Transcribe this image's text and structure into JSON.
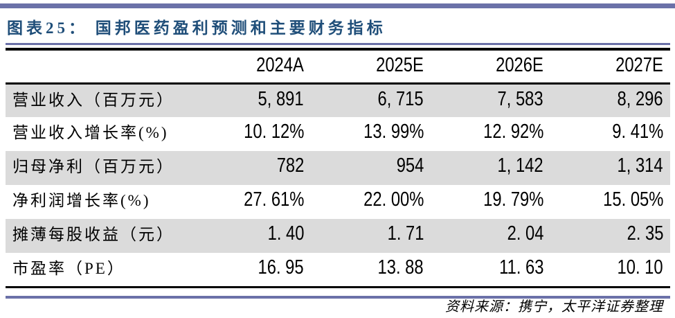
{
  "title": "图表25： 国邦医药盈利预测和主要财务指标",
  "source_note": "资料来源：携宁，太平洋证券整理",
  "colors": {
    "accent_purple": "#6B71A8",
    "title_blue": "#1F4E79",
    "row_shade_gray": "#DBDBDB",
    "rule_black": "#000000"
  },
  "table": {
    "columns": [
      "",
      "2024A",
      "2025E",
      "2026E",
      "2027E"
    ],
    "rows": [
      {
        "label": "营业收入（百万元）",
        "values": [
          "5, 891",
          "6, 715",
          "7, 583",
          "8, 296"
        ]
      },
      {
        "label": "营业收入增长率(%)",
        "values": [
          "10. 12%",
          "13. 99%",
          "12. 92%",
          "9. 41%"
        ]
      },
      {
        "label": "归母净利（百万元）",
        "values": [
          "782",
          "954",
          "1, 142",
          "1, 314"
        ]
      },
      {
        "label": "净利润增长率(%)",
        "values": [
          "27. 61%",
          "22. 00%",
          "19. 79%",
          "15. 05%"
        ]
      },
      {
        "label": "摊薄每股收益（元）",
        "values": [
          "1. 40",
          "1. 71",
          "2. 04",
          "2. 35"
        ]
      },
      {
        "label": "市盈率（PE）",
        "values": [
          "16. 95",
          "13. 88",
          "11. 63",
          "10. 10"
        ]
      }
    ]
  },
  "chart_data": {
    "type": "table",
    "title": "图表25： 国邦医药盈利预测和主要财务指标",
    "categories": [
      "2024A",
      "2025E",
      "2026E",
      "2027E"
    ],
    "series": [
      {
        "name": "营业收入（百万元）",
        "values": [
          5891,
          6715,
          7583,
          8296
        ]
      },
      {
        "name": "营业收入增长率(%)",
        "values": [
          10.12,
          13.99,
          12.92,
          9.41
        ]
      },
      {
        "name": "归母净利（百万元）",
        "values": [
          782,
          954,
          1142,
          1314
        ]
      },
      {
        "name": "净利润增长率(%)",
        "values": [
          27.61,
          22.0,
          19.79,
          15.05
        ]
      },
      {
        "name": "摊薄每股收益（元）",
        "values": [
          1.4,
          1.71,
          2.04,
          2.35
        ]
      },
      {
        "name": "市盈率（PE）",
        "values": [
          16.95,
          13.88,
          11.63,
          10.1
        ]
      }
    ]
  }
}
